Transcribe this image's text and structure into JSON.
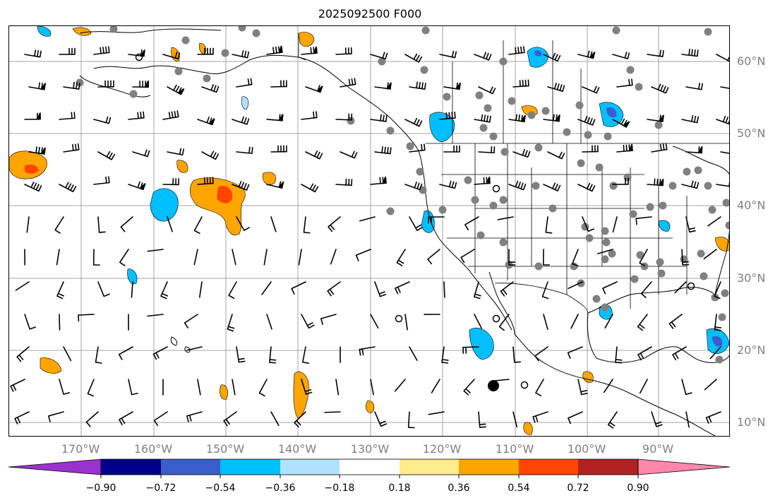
{
  "title": "2025092500 F000",
  "map": {
    "latitude_labels": [
      "60°N",
      "50°N",
      "40°N",
      "30°N",
      "20°N",
      "10°N"
    ],
    "longitude_labels": [
      "170°W",
      "160°W",
      "150°W",
      "140°W",
      "130°W",
      "120°W",
      "110°W",
      "100°W",
      "90°W"
    ],
    "gridline_color": "#a6a6a6",
    "land_outline_color": "#000000",
    "station_marker_color": "#808080",
    "wind_barb_color": "#000000"
  },
  "colorbar": {
    "tick_labels": [
      "−0.90",
      "−0.72",
      "−0.54",
      "−0.36",
      "−0.18",
      "0.18",
      "0.36",
      "0.54",
      "0.72",
      "0.90"
    ],
    "colors": [
      "#9a32cd",
      "#00008b",
      "#3a5fcd",
      "#00bfff",
      "#b0e2ff",
      "#ffffff",
      "#ffec8b",
      "#ffa500",
      "#ff4500",
      "#b22222",
      "#ff88aa"
    ]
  }
}
